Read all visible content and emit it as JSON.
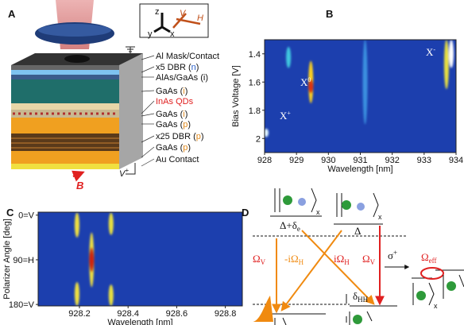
{
  "panel_a": {
    "label": "A",
    "inset": {
      "z": "z",
      "y": "y",
      "x": "x",
      "V": "V",
      "H": "H"
    },
    "layers": [
      {
        "parts": [
          "Al Mask/Contact"
        ]
      },
      {
        "parts": [
          "x5 DBR (",
          "n",
          ")"
        ],
        "accent": "#2a5fc8"
      },
      {
        "parts": [
          "AlAs/GaAs (i)"
        ]
      },
      {
        "parts": [
          "GaAs (",
          "i",
          ")"
        ],
        "accent": "#e08a1e"
      },
      {
        "parts": [
          "InAs QDs"
        ],
        "accent": "#e02020"
      },
      {
        "parts": [
          "GaAs (",
          "i",
          ")"
        ],
        "accent": "#e08a1e"
      },
      {
        "parts": [
          "GaAs (",
          "p",
          ")"
        ],
        "accent": "#e08a1e"
      },
      {
        "parts": [
          "x25 DBR (",
          "p",
          ")"
        ],
        "accent": "#e08a1e"
      },
      {
        "parts": [
          "GaAs (",
          "p",
          ")"
        ],
        "accent": "#e08a1e"
      },
      {
        "parts": [
          "Au Contact"
        ]
      }
    ],
    "bias": {
      "text": "V",
      "sup": "+"
    },
    "field": "B"
  },
  "chart_data": [
    {
      "type": "heatmap",
      "panel_label": "B",
      "xlabel": "Wavelength [nm]",
      "ylabel": "Bias Voltage [V]",
      "xlim": [
        928,
        934
      ],
      "xticks": [
        928,
        929,
        930,
        931,
        932,
        933,
        934
      ],
      "ylim": [
        2.1,
        1.3
      ],
      "yticks": [
        1.4,
        1.6,
        1.8,
        2
      ],
      "background": "#1c3fae",
      "streaks": [
        {
          "x": 928.05,
          "y": [
            1.93,
            1.99
          ],
          "color": "#e0f4ff"
        },
        {
          "x": 928.75,
          "y": [
            1.35,
            1.5
          ],
          "color": "#40c8e0"
        },
        {
          "x": 929.45,
          "y": [
            1.45,
            1.75
          ],
          "color": "#ffd21f"
        },
        {
          "x": 929.45,
          "y": [
            1.58,
            1.68
          ],
          "color": "#e03010"
        },
        {
          "x": 931.15,
          "y": [
            1.3,
            1.9
          ],
          "color": "#3a90e0"
        },
        {
          "x": 933.7,
          "y": [
            1.3,
            1.65
          ],
          "color": "#e8e040"
        },
        {
          "x": 933.85,
          "y": [
            1.3,
            1.5
          ],
          "color": "#ffffff"
        }
      ],
      "annotations": [
        {
          "text": "X",
          "sup": "0"
        },
        {
          "text": "X",
          "sup": "+"
        },
        {
          "text": "X",
          "sup": "-"
        }
      ]
    },
    {
      "type": "heatmap",
      "panel_label": "C",
      "xlabel": "Wavelength [nm]",
      "ylabel": "Polarizer Angle [deg]",
      "xlim": [
        928.03,
        928.87
      ],
      "xticks": [
        928.2,
        928.4,
        928.6,
        928.8
      ],
      "ylim": [
        183,
        -6
      ],
      "yticks": [
        {
          "value": 0,
          "label": "0=V"
        },
        {
          "value": 90,
          "label": "90=H"
        },
        {
          "value": 180,
          "label": "180=V"
        }
      ],
      "background": "#1c3fae",
      "streaks": [
        {
          "x": 928.19,
          "y": [
            -5,
            45
          ],
          "color": "#f0e040"
        },
        {
          "x": 928.19,
          "y": [
            135,
            183
          ],
          "color": "#f0e040"
        },
        {
          "x": 928.25,
          "y": [
            35,
            145
          ],
          "color": "#f0e040"
        },
        {
          "x": 928.25,
          "y": [
            65,
            115
          ],
          "color": "#d02010"
        },
        {
          "x": 928.33,
          "y": [
            -5,
            40
          ],
          "color": "#e8e040"
        },
        {
          "x": 928.33,
          "y": [
            140,
            183
          ],
          "color": "#e8e040"
        }
      ]
    }
  ],
  "panel_d": {
    "label": "D",
    "ket_subscript": "x",
    "upper_left": {
      "main": "Δ+δ",
      "sub": "e"
    },
    "upper_right": "Δ",
    "omega_v": {
      "main": "Ω",
      "sub": "V"
    },
    "minus_i_omega_h": {
      "main": "-iΩ",
      "sub": "H"
    },
    "i_omega_h": {
      "main": "iΩ",
      "sub": "H"
    },
    "sigma": {
      "main": "σ",
      "sup": "+"
    },
    "omega_eff": {
      "main": "Ω",
      "sub": "eff"
    },
    "delta_hh": {
      "main": "δ",
      "sub": "HH"
    }
  }
}
